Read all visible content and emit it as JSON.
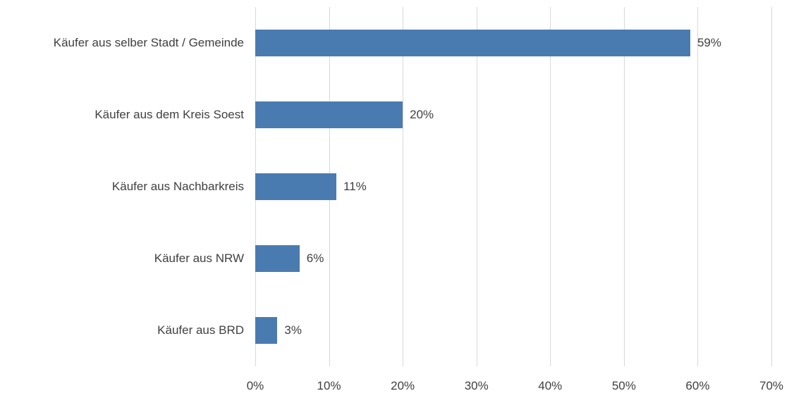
{
  "chart_data": {
    "type": "bar",
    "orientation": "horizontal",
    "title": "",
    "categories": [
      "Käufer aus selber Stadt / Gemeinde",
      "Käufer aus dem Kreis Soest",
      "Käufer aus Nachbarkreis",
      "Käufer aus NRW",
      "Käufer aus BRD"
    ],
    "values": [
      59,
      20,
      11,
      6,
      3
    ],
    "value_labels": [
      "59%",
      "20%",
      "11%",
      "6%",
      "3%"
    ],
    "x_ticks": [
      "0%",
      "10%",
      "20%",
      "30%",
      "40%",
      "50%",
      "60%",
      "70%"
    ],
    "x_tick_values": [
      0,
      10,
      20,
      30,
      40,
      50,
      60,
      70
    ],
    "xlim": [
      0,
      70
    ],
    "grid": true,
    "legend": "none",
    "colors": {
      "bar": "#4a7bb0",
      "gridline": "#d9d9d9",
      "text": "#404040"
    }
  }
}
